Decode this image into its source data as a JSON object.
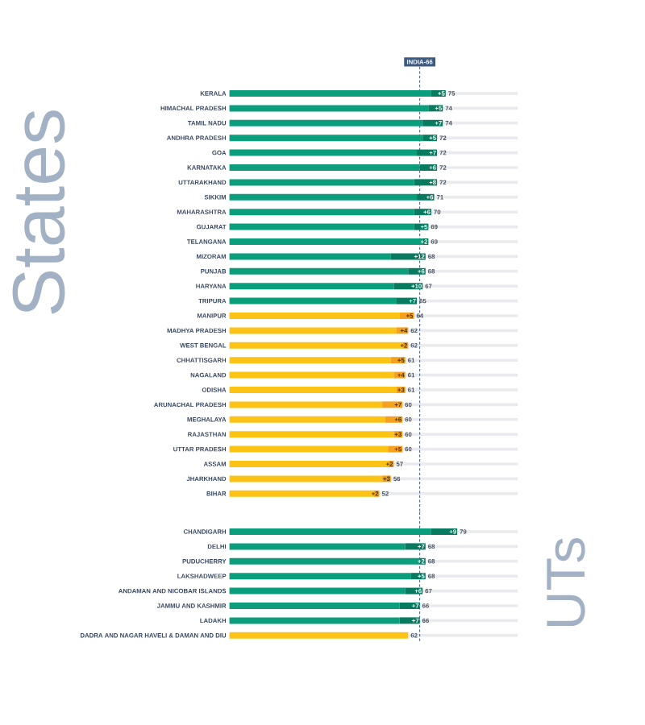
{
  "chart_data": [
    {
      "type": "bar",
      "orientation": "horizontal",
      "stacked": true,
      "categories": [
        "KERALA",
        "HIMACHAL PRADESH",
        "TAMIL NADU",
        "ANDHRA PRADESH",
        "GOA",
        "KARNATAKA",
        "UTTARAKHAND",
        "SIKKIM",
        "MAHARASHTRA",
        "GUJARAT",
        "TELANGANA",
        "MIZORAM",
        "PUNJAB",
        "HARYANA",
        "TRIPURA",
        "MANIPUR",
        "MADHYA PRADESH",
        "WEST BENGAL",
        "CHHATTISGARH",
        "NAGALAND",
        "ODISHA",
        "ARUNACHAL PRADESH",
        "MEGHALAYA",
        "RAJASTHAN",
        "UTTAR PRADESH",
        "ASSAM",
        "JHARKHAND",
        "BIHAR"
      ],
      "series": [
        {
          "colors": [
            "#0b9e7d",
            "#0b9e7d",
            "#0b9e7d",
            "#0b9e7d",
            "#0b9e7d",
            "#0b9e7d",
            "#0b9e7d",
            "#0b9e7d",
            "#0b9e7d",
            "#0b9e7d",
            "#0b9e7d",
            "#0b9e7d",
            "#0b9e7d",
            "#0b9e7d",
            "#0b9e7d",
            "#fcc314",
            "#fcc314",
            "#fcc314",
            "#fcc314",
            "#fcc314",
            "#fcc314",
            "#fcc314",
            "#fcc314",
            "#fcc314",
            "#fcc314",
            "#fcc314",
            "#fcc314",
            "#fcc314"
          ],
          "values": [
            70,
            69,
            67,
            67,
            65,
            66,
            64,
            65,
            64,
            64,
            67,
            56,
            62,
            57,
            58,
            59,
            58,
            60,
            56,
            57,
            58,
            53,
            54,
            57,
            55,
            55,
            53,
            50
          ]
        },
        {
          "colors": [
            "#087a60",
            "#087a60",
            "#087a60",
            "#087a60",
            "#087a60",
            "#087a60",
            "#087a60",
            "#087a60",
            "#087a60",
            "#087a60",
            "#087a60",
            "#087a60",
            "#087a60",
            "#087a60",
            "#087a60",
            "#f6a11e",
            "#f6a11e",
            "#f6a11e",
            "#f6a11e",
            "#f6a11e",
            "#f6a11e",
            "#f6a11e",
            "#f6a11e",
            "#f6a11e",
            "#f6a11e",
            "#f6a11e",
            "#f6a11e",
            "#f6a11e"
          ],
          "values": [
            5,
            5,
            7,
            5,
            7,
            6,
            8,
            6,
            6,
            5,
            2,
            12,
            6,
            10,
            7,
            5,
            4,
            2,
            5,
            4,
            3,
            7,
            6,
            3,
            5,
            2,
            3,
            2
          ],
          "value_labels": [
            "+5",
            "+5",
            "+7",
            "+5",
            "+7",
            "+6",
            "+8",
            "+6",
            "+6",
            "+5",
            "+2",
            "+12",
            "+6",
            "+10",
            "+7",
            "+5",
            "+4",
            "+2",
            "+5",
            "+4",
            "+3",
            "+7",
            "+6",
            "+3",
            "+5",
            "+2",
            "+3",
            "+2"
          ]
        }
      ],
      "totals": [
        "75",
        "74",
        "74",
        "72",
        "72",
        "72",
        "72",
        "71",
        "70",
        "69",
        "69",
        "68",
        "68",
        "67",
        "65",
        "64",
        "62",
        "62",
        "61",
        "61",
        "61",
        "60",
        "60",
        "60",
        "60",
        "57",
        "56",
        "52"
      ],
      "xlim": [
        0,
        100
      ],
      "tick_labels": "y",
      "ref_lines": [
        {
          "axis": "x",
          "value": 66,
          "label": "INDIA-66",
          "color": "#3d5a80",
          "line_style": "dashed"
        }
      ],
      "annotations": [
        "States"
      ]
    },
    {
      "type": "bar",
      "orientation": "horizontal",
      "stacked": true,
      "categories": [
        "CHANDIGARH",
        "DELHI",
        "PUDUCHERRY",
        "LAKSHADWEEP",
        "ANDAMAN AND NICOBAR ISLANDS",
        "JAMMU AND KASHMIR",
        "LADAKH",
        "DADRA AND NAGAR HAVELI & DAMAN AND DIU"
      ],
      "series": [
        {
          "colors": [
            "#0b9e7d",
            "#0b9e7d",
            "#0b9e7d",
            "#0b9e7d",
            "#0b9e7d",
            "#0b9e7d",
            "#0b9e7d",
            "#fcc314"
          ],
          "values": [
            70,
            61,
            66,
            63,
            61,
            59,
            59,
            62
          ]
        },
        {
          "colors": [
            "#087a60",
            "#087a60",
            "#087a60",
            "#087a60",
            "#087a60",
            "#087a60",
            "#087a60",
            "#f6a11e"
          ],
          "values": [
            9,
            7,
            2,
            5,
            6,
            7,
            7,
            null
          ],
          "value_labels": [
            "+9",
            "+7",
            "+2",
            "+5",
            "+6",
            "+7",
            "+7",
            null
          ]
        }
      ],
      "totals": [
        "79",
        "68",
        "68",
        "68",
        "67",
        "66",
        "66",
        "62"
      ],
      "xlim": [
        0,
        100
      ],
      "tick_labels": "y",
      "ref_lines": [
        {
          "axis": "x",
          "value": 66,
          "color": "#3d5a80",
          "line_style": "dashed"
        }
      ],
      "annotations": [
        "UTs"
      ]
    }
  ]
}
